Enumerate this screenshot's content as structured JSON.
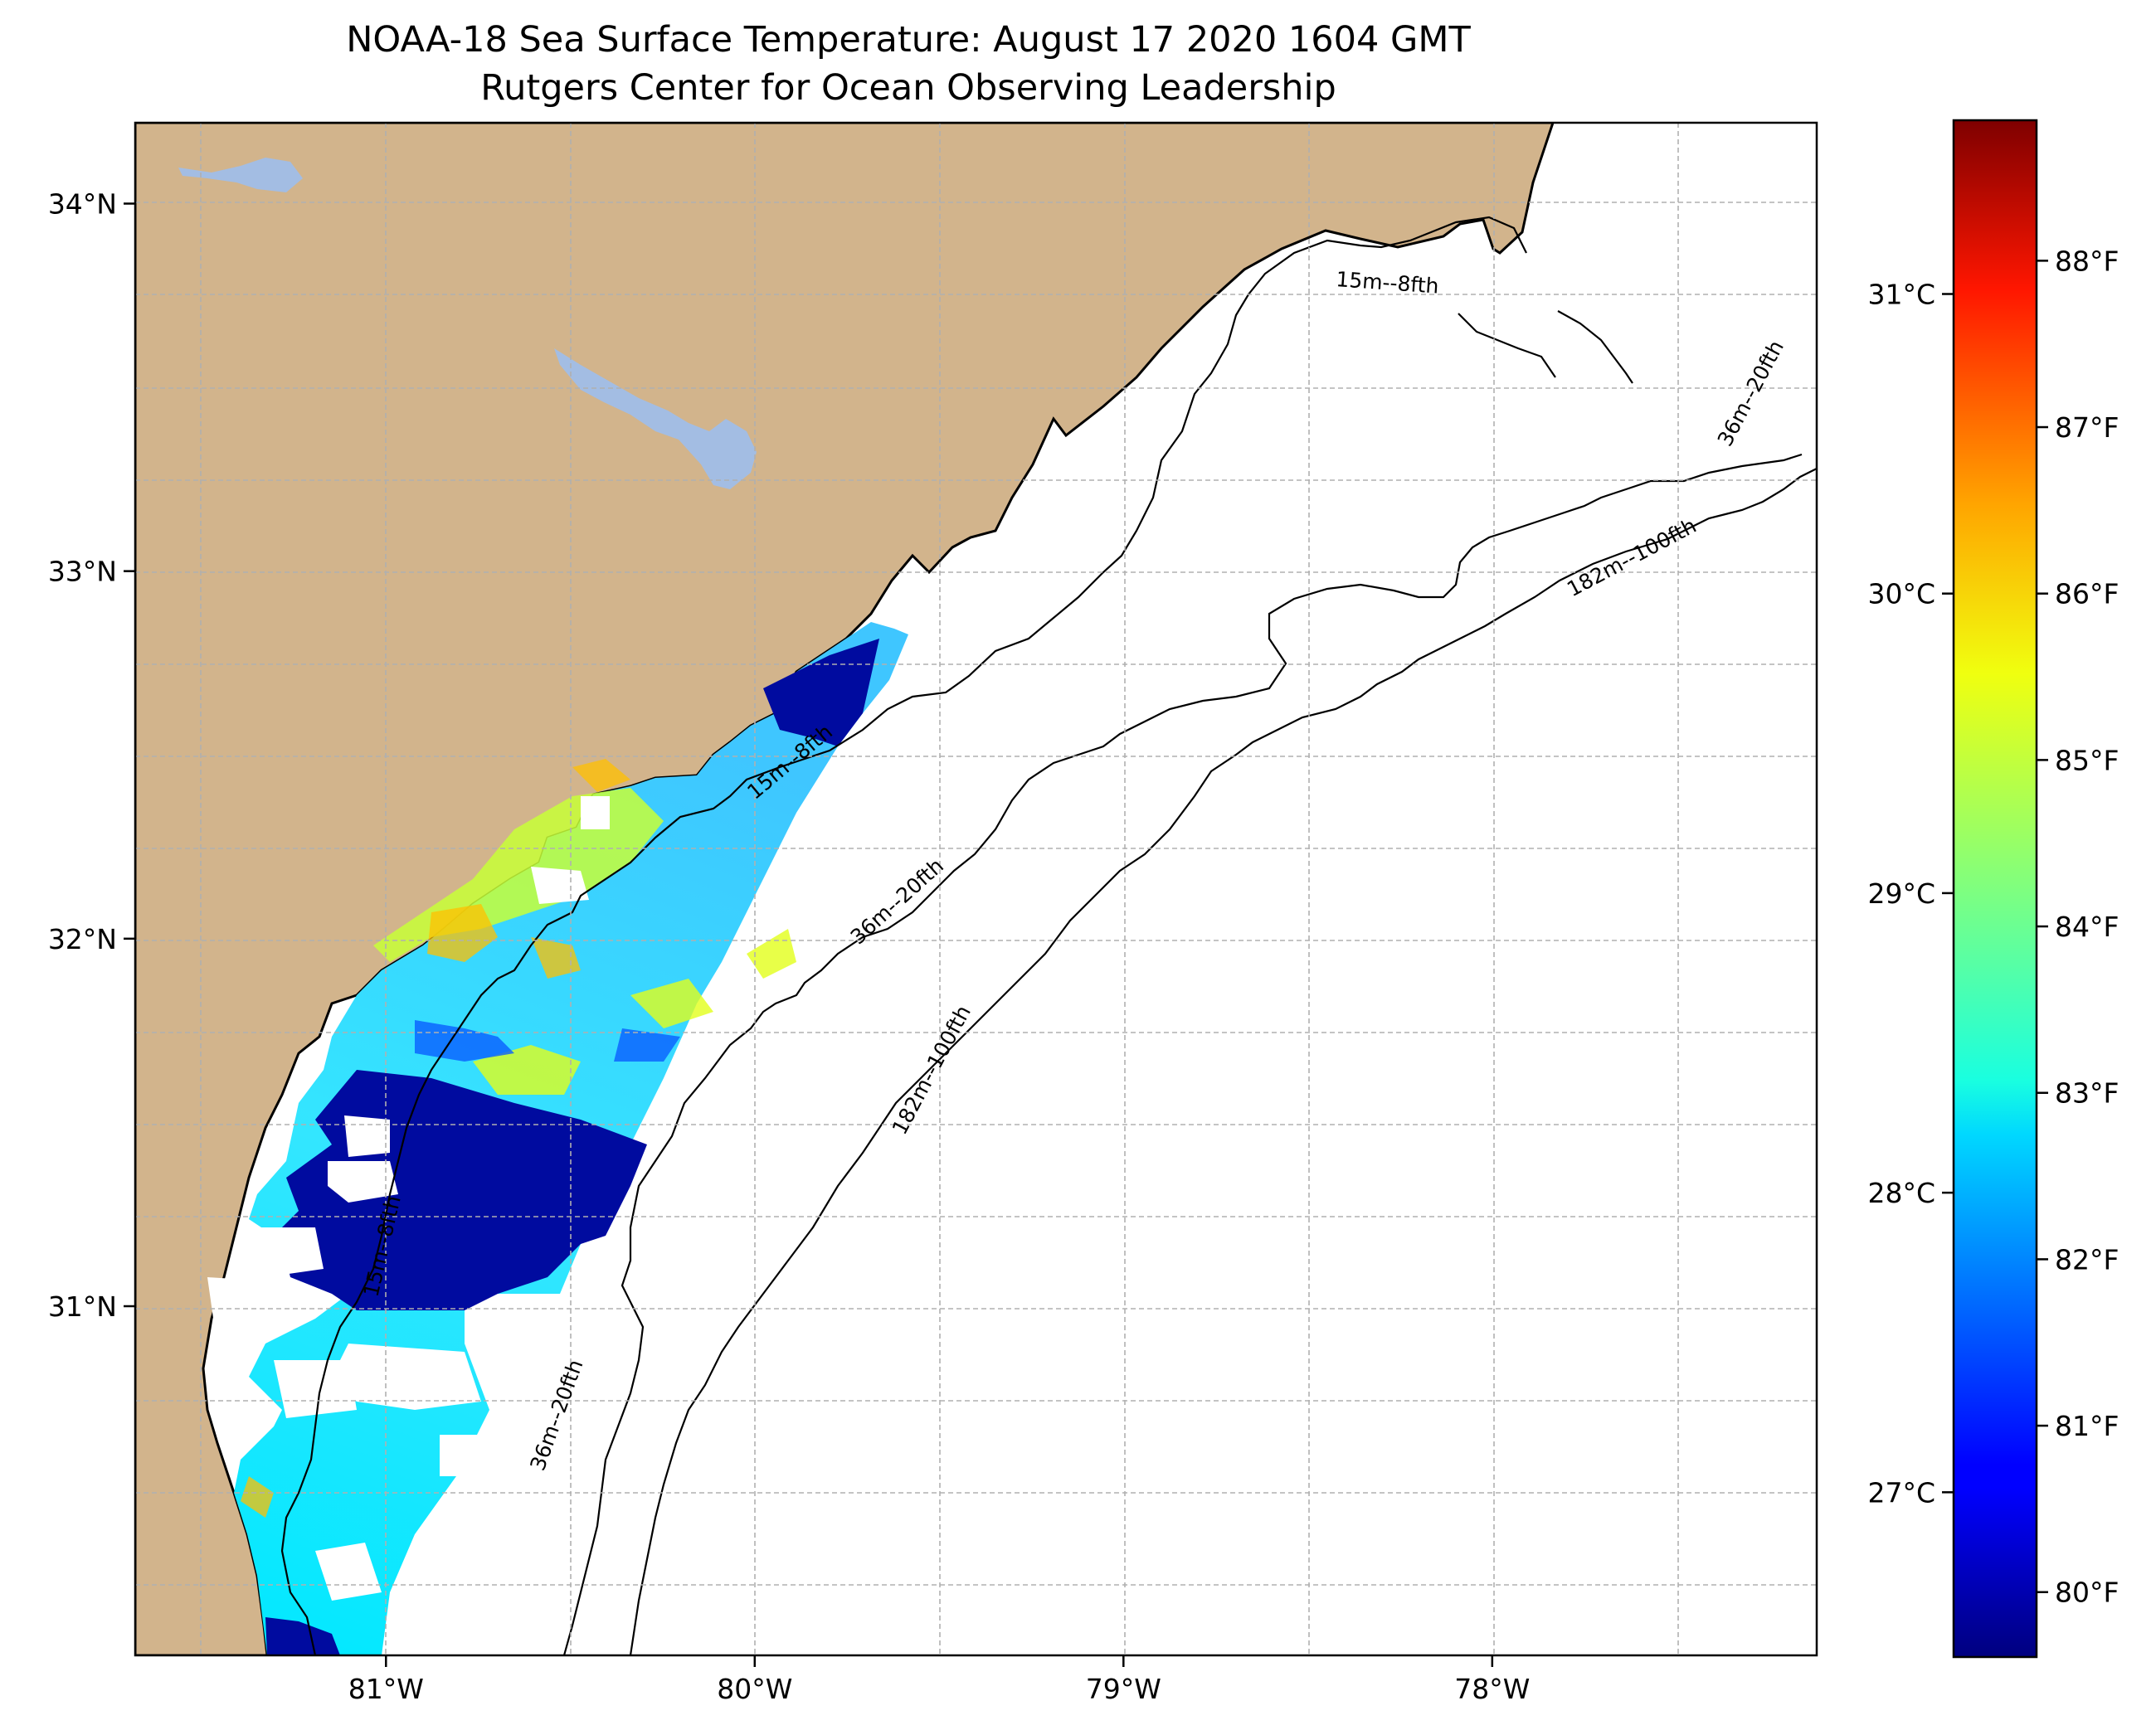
{
  "title": {
    "line1": "NOAA-18 Sea Surface Temperature: August 17 2020 1604 GMT",
    "line2": "Rutgers Center for Ocean Observing Leadership"
  },
  "map": {
    "extent": {
      "lon": [
        -81.68,
        -77.12
      ],
      "lat": [
        30.05,
        34.22
      ]
    },
    "lon_ticks": [
      {
        "value": -81,
        "label": "81°W"
      },
      {
        "value": -80,
        "label": "80°W"
      },
      {
        "value": -79,
        "label": "79°W"
      },
      {
        "value": -78,
        "label": "78°W"
      }
    ],
    "lat_ticks": [
      {
        "value": 34,
        "label": "34°N"
      },
      {
        "value": 33,
        "label": "33°N"
      },
      {
        "value": 32,
        "label": "32°N"
      },
      {
        "value": 31,
        "label": "31°N"
      }
    ],
    "grid": true,
    "land_color": "#d2b48c",
    "water_color": "#ffffff",
    "lake_color": "#a3bde3",
    "contours": [
      {
        "label": "15m--8fth"
      },
      {
        "label": "36m--20fth"
      },
      {
        "label": "182m--100fth"
      }
    ]
  },
  "colorbar": {
    "colormap": "jet",
    "range_celsius": [
      26.45,
      31.58
    ],
    "celsius_ticks": [
      {
        "value": 27,
        "label": "27°C"
      },
      {
        "value": 28,
        "label": "28°C"
      },
      {
        "value": 29,
        "label": "29°C"
      },
      {
        "value": 30,
        "label": "30°C"
      },
      {
        "value": 31,
        "label": "31°C"
      }
    ],
    "fahrenheit_ticks": [
      {
        "value": 80,
        "label": "80°F"
      },
      {
        "value": 81,
        "label": "81°F"
      },
      {
        "value": 82,
        "label": "82°F"
      },
      {
        "value": 83,
        "label": "83°F"
      },
      {
        "value": 84,
        "label": "84°F"
      },
      {
        "value": 85,
        "label": "85°F"
      },
      {
        "value": 86,
        "label": "86°F"
      },
      {
        "value": 87,
        "label": "87°F"
      },
      {
        "value": 88,
        "label": "88°F"
      }
    ]
  }
}
